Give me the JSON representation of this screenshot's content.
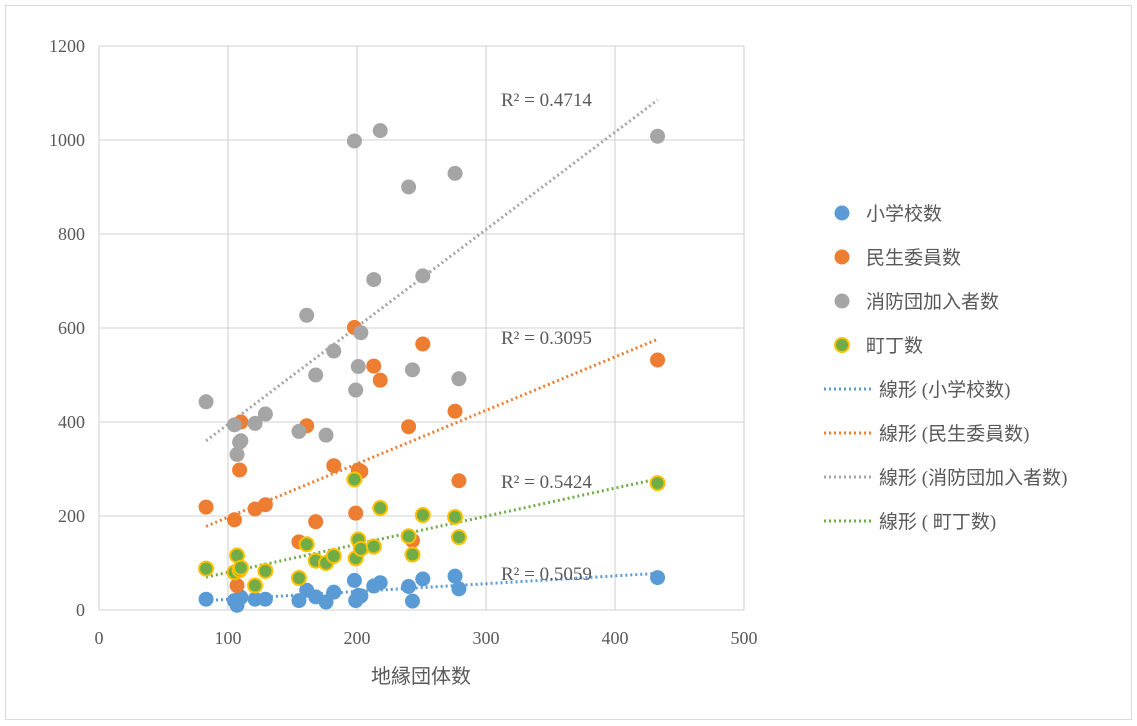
{
  "chart_data": {
    "type": "scatter",
    "xlabel": "地縁団体数",
    "ylabel": "",
    "xlim": [
      0,
      500
    ],
    "ylim": [
      0,
      1200
    ],
    "x_ticks": [
      0,
      100,
      200,
      300,
      400,
      500
    ],
    "y_ticks": [
      0,
      200,
      400,
      600,
      800,
      1000,
      1200
    ],
    "grid": true,
    "legend_position": "right",
    "x": [
      83,
      105,
      107,
      109,
      110,
      121,
      129,
      155,
      161,
      168,
      176,
      182,
      198,
      199,
      201,
      203,
      213,
      218,
      240,
      243,
      251,
      276,
      279,
      433
    ],
    "series": [
      {
        "name": "小学校数",
        "color": "#5b9bd5",
        "edge": "#5b9bd5",
        "values": [
          23,
          20,
          10,
          25,
          27,
          23,
          23,
          20,
          42,
          28,
          17,
          38,
          63,
          20,
          31,
          30,
          51,
          58,
          50,
          19,
          66,
          72,
          45,
          69
        ],
        "trend_label": "R² = 0.5059",
        "trend": [
          83,
          20,
          433,
          78
        ]
      },
      {
        "name": "民生委員数",
        "color": "#ed7d31",
        "edge": "#ed7d31",
        "values": [
          219,
          192,
          52,
          298,
          400,
          215,
          224,
          145,
          392,
          188,
          100,
          307,
          601,
          206,
          298,
          295,
          519,
          489,
          390,
          148,
          566,
          423,
          275,
          532
        ],
        "trend_label": "R² = 0.3095",
        "trend": [
          83,
          178,
          433,
          576
        ]
      },
      {
        "name": "消防団加入者数",
        "color": "#a5a5a5",
        "edge": "#a5a5a5",
        "values": [
          443,
          394,
          331,
          357,
          360,
          397,
          417,
          380,
          627,
          500,
          372,
          551,
          998,
          468,
          518,
          590,
          703,
          1020,
          900,
          511,
          711,
          929,
          492,
          1008
        ],
        "trend_label": "R² = 0.4714",
        "trend": [
          83,
          360,
          433,
          1085
        ]
      },
      {
        "name": " 町丁数",
        "color": "#70ad47",
        "edge": "#ffc000",
        "values": [
          88,
          80,
          116,
          85,
          90,
          52,
          83,
          68,
          140,
          105,
          100,
          115,
          278,
          110,
          150,
          130,
          135,
          217,
          157,
          118,
          202,
          198,
          155,
          270
        ],
        "trend_label": "R² = 0.5424",
        "trend": [
          83,
          70,
          433,
          279
        ]
      }
    ],
    "legend": [
      "小学校数",
      "民生委員数",
      "消防団加入者数",
      " 町丁数",
      "線形 (小学校数)",
      "線形 (民生委員数)",
      "線形 (消防団加入者数)",
      "線形 ( 町丁数)"
    ]
  }
}
